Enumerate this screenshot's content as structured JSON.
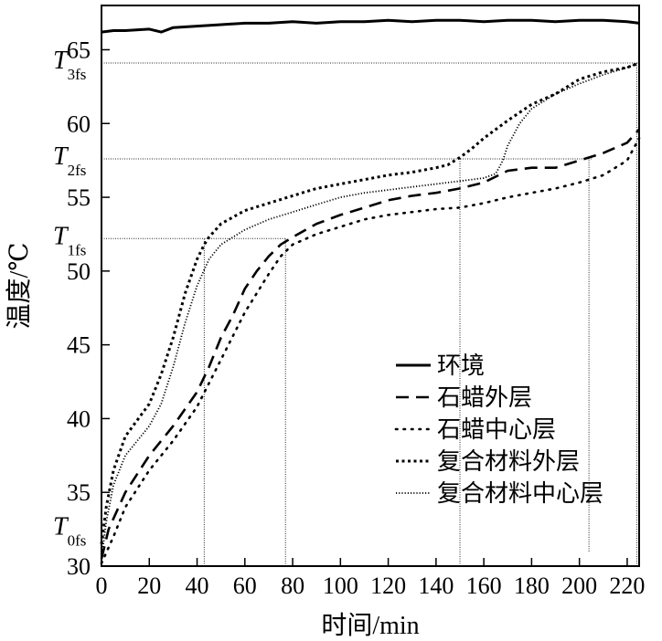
{
  "chart_data": {
    "type": "line",
    "xlabel": "时间/min",
    "ylabel": "温度/℃",
    "xlim": [
      0,
      225
    ],
    "ylim": [
      30,
      68
    ],
    "x_ticks": [
      0,
      20,
      40,
      60,
      80,
      100,
      120,
      140,
      160,
      180,
      200,
      220
    ],
    "y_ticks": [
      30,
      35,
      40,
      45,
      50,
      55,
      60,
      65
    ],
    "grid": false,
    "legend_position": "center-right",
    "temperature_markers": [
      {
        "name": "T",
        "sub": "0fs",
        "value": 32.5
      },
      {
        "name": "T",
        "sub": "1fs",
        "value": 52.2
      },
      {
        "name": "T",
        "sub": "2fs",
        "value": 57.6
      },
      {
        "name": "T",
        "sub": "3fs",
        "value": 64.1
      }
    ],
    "reference_lines": {
      "horizontal": [
        {
          "y": 64.1,
          "x_from": 0,
          "x_to": 225
        },
        {
          "y": 57.6,
          "x_from": 0,
          "x_to": 205
        },
        {
          "y": 52.2,
          "x_from": 0,
          "x_to": 77
        }
      ],
      "vertical": [
        {
          "x": 43,
          "y_from": 30,
          "y_to": 52.2
        },
        {
          "x": 77,
          "y_from": 30,
          "y_to": 52.2
        },
        {
          "x": 150,
          "y_from": 30,
          "y_to": 57.6
        },
        {
          "x": 204,
          "y_from": 31,
          "y_to": 57.6
        },
        {
          "x": 224,
          "y_from": 30,
          "y_to": 64.1
        }
      ]
    },
    "series": [
      {
        "name": "环境",
        "style": "solid",
        "x": [
          0,
          5,
          10,
          20,
          25,
          30,
          40,
          50,
          60,
          70,
          80,
          90,
          100,
          110,
          120,
          130,
          140,
          150,
          160,
          170,
          180,
          190,
          200,
          210,
          220,
          225
        ],
        "y": [
          66.2,
          66.3,
          66.3,
          66.4,
          66.2,
          66.5,
          66.6,
          66.7,
          66.8,
          66.8,
          66.9,
          66.8,
          66.9,
          66.9,
          67.0,
          66.9,
          67.0,
          67.0,
          66.9,
          67.0,
          67.0,
          66.9,
          67.0,
          67.0,
          66.9,
          66.8
        ]
      },
      {
        "name": "石蜡外层",
        "style": "dashed",
        "x": [
          0,
          3,
          10,
          20,
          30,
          40,
          45,
          50,
          55,
          60,
          65,
          70,
          75,
          80,
          90,
          100,
          110,
          120,
          130,
          140,
          150,
          160,
          170,
          180,
          190,
          200,
          210,
          220,
          225
        ],
        "y": [
          30.5,
          32.5,
          35.0,
          37.5,
          39.5,
          41.8,
          43.5,
          45.5,
          47.0,
          48.8,
          50.0,
          51.0,
          51.8,
          52.3,
          53.2,
          53.8,
          54.3,
          54.8,
          55.1,
          55.3,
          55.6,
          56.0,
          56.8,
          57.0,
          57.0,
          57.5,
          58.0,
          58.7,
          59.6
        ]
      },
      {
        "name": "石蜡中心层",
        "style": "dotted",
        "x": [
          0,
          5,
          10,
          20,
          30,
          40,
          50,
          60,
          70,
          75,
          80,
          90,
          100,
          110,
          120,
          130,
          140,
          150,
          160,
          170,
          180,
          190,
          200,
          210,
          220,
          225
        ],
        "y": [
          30.2,
          32.0,
          34.0,
          36.5,
          38.5,
          40.8,
          44.0,
          47.2,
          49.8,
          51.0,
          51.8,
          52.5,
          53.0,
          53.5,
          53.8,
          54.0,
          54.2,
          54.3,
          54.6,
          55.0,
          55.3,
          55.6,
          56.0,
          56.5,
          57.5,
          59.0
        ]
      },
      {
        "name": "复合材料外层",
        "style": "dense-dotted",
        "x": [
          0,
          2,
          5,
          10,
          20,
          25,
          30,
          35,
          40,
          43,
          45,
          50,
          60,
          70,
          80,
          90,
          100,
          110,
          120,
          130,
          140,
          145,
          150,
          155,
          160,
          170,
          180,
          190,
          200,
          210,
          220,
          225
        ],
        "y": [
          31.5,
          34.0,
          36.5,
          38.8,
          41.0,
          43.0,
          45.5,
          48.5,
          50.8,
          51.8,
          52.3,
          53.2,
          54.1,
          54.6,
          55.1,
          55.6,
          55.9,
          56.2,
          56.5,
          56.7,
          57.0,
          57.2,
          57.7,
          58.3,
          59.0,
          60.2,
          61.3,
          62.0,
          63.0,
          63.5,
          63.8,
          64.1
        ]
      },
      {
        "name": "复合材料中心层",
        "style": "fine-dotted",
        "x": [
          0,
          2,
          5,
          10,
          20,
          25,
          30,
          35,
          40,
          45,
          50,
          60,
          70,
          80,
          90,
          100,
          110,
          120,
          130,
          140,
          150,
          160,
          165,
          168,
          170,
          175,
          180,
          190,
          200,
          210,
          220,
          225
        ],
        "y": [
          30.5,
          33.0,
          35.5,
          37.5,
          39.5,
          41.0,
          43.5,
          46.5,
          49.0,
          50.8,
          51.8,
          52.8,
          53.5,
          54.0,
          54.5,
          55.0,
          55.3,
          55.5,
          55.7,
          55.9,
          56.1,
          56.3,
          56.6,
          57.5,
          58.5,
          60.0,
          61.0,
          62.0,
          62.7,
          63.3,
          63.8,
          64.1
        ]
      }
    ]
  }
}
